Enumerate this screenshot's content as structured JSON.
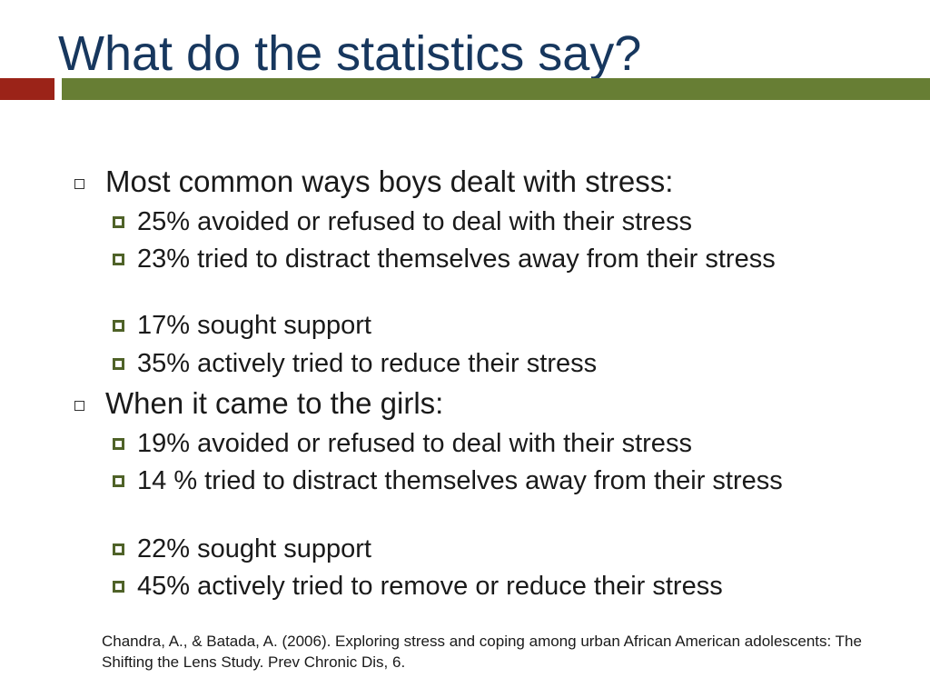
{
  "title": "What do the statistics say?",
  "sections": [
    {
      "heading": "Most common ways boys dealt with stress:",
      "items": [
        "25% avoided or refused to deal with their stress",
        "23% tried to distract themselves away from their stress",
        "17% sought support",
        "35% actively tried to reduce their stress"
      ]
    },
    {
      "heading": "When it came to the girls:",
      "items": [
        "19% avoided or refused to deal with their stress",
        "14 % tried to distract themselves away from their stress",
        "22% sought support",
        "45% actively tried to remove or reduce their stress"
      ]
    }
  ],
  "citation": "Chandra, A., & Batada, A. (2006). Exploring stress and coping among urban African American adolescents: The Shifting the Lens Study. Prev Chronic Dis, 6.",
  "colors": {
    "title": "#17375e",
    "accent_red": "#9b2318",
    "accent_green": "#677e34",
    "sub_bullet": "#4f6228"
  }
}
